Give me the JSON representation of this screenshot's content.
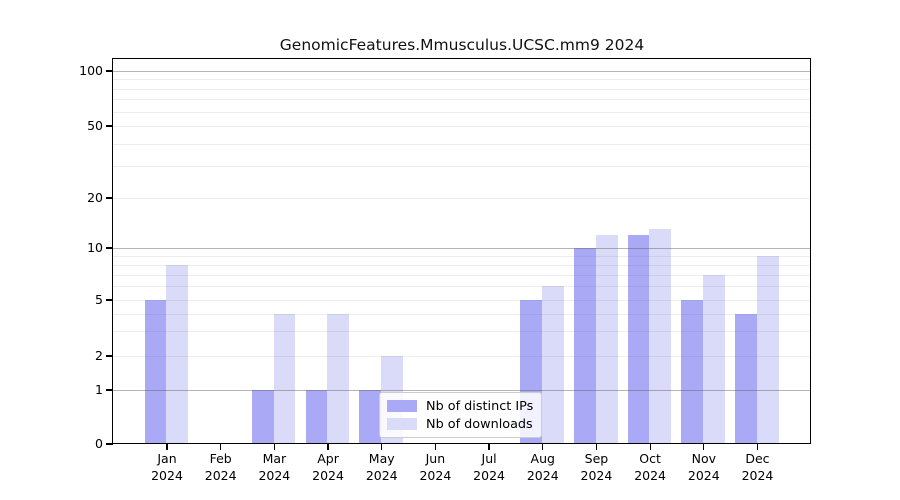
{
  "title": "GenomicFeatures.Mmusculus.UCSC.mm9 2024",
  "chart_data": {
    "type": "bar",
    "title": "GenomicFeatures.Mmusculus.UCSC.mm9 2024",
    "months": [
      "Jan",
      "Feb",
      "Mar",
      "Apr",
      "May",
      "Jun",
      "Jul",
      "Aug",
      "Sep",
      "Oct",
      "Nov",
      "Dec"
    ],
    "year": "2024",
    "series": [
      {
        "name": "Nb of distinct IPs",
        "color": "#a9a9f5",
        "values": [
          5,
          0,
          1,
          1,
          1,
          0,
          0,
          5,
          10,
          12,
          5,
          4
        ]
      },
      {
        "name": "Nb of downloads",
        "color": "#dadaf9",
        "values": [
          8,
          0,
          4,
          4,
          2,
          0,
          0,
          6,
          12,
          13,
          7,
          9
        ]
      }
    ],
    "y_axis": {
      "scale": "log-like",
      "tick_values": [
        0,
        1,
        2,
        5,
        10,
        20,
        50,
        100
      ],
      "major_gridlines": [
        1,
        10,
        100
      ],
      "minor_gridlines": [
        3,
        4,
        6,
        7,
        8,
        9,
        30,
        40,
        60,
        70,
        80,
        90
      ],
      "range": [
        0,
        110
      ]
    },
    "grid": true,
    "legend_position": "bottom-center-inside"
  },
  "colors": {
    "bar_distinct_ips": "#a9a9f5",
    "bar_downloads": "#dadaf9",
    "axis": "#000000",
    "legend_border": "#cccccc"
  }
}
